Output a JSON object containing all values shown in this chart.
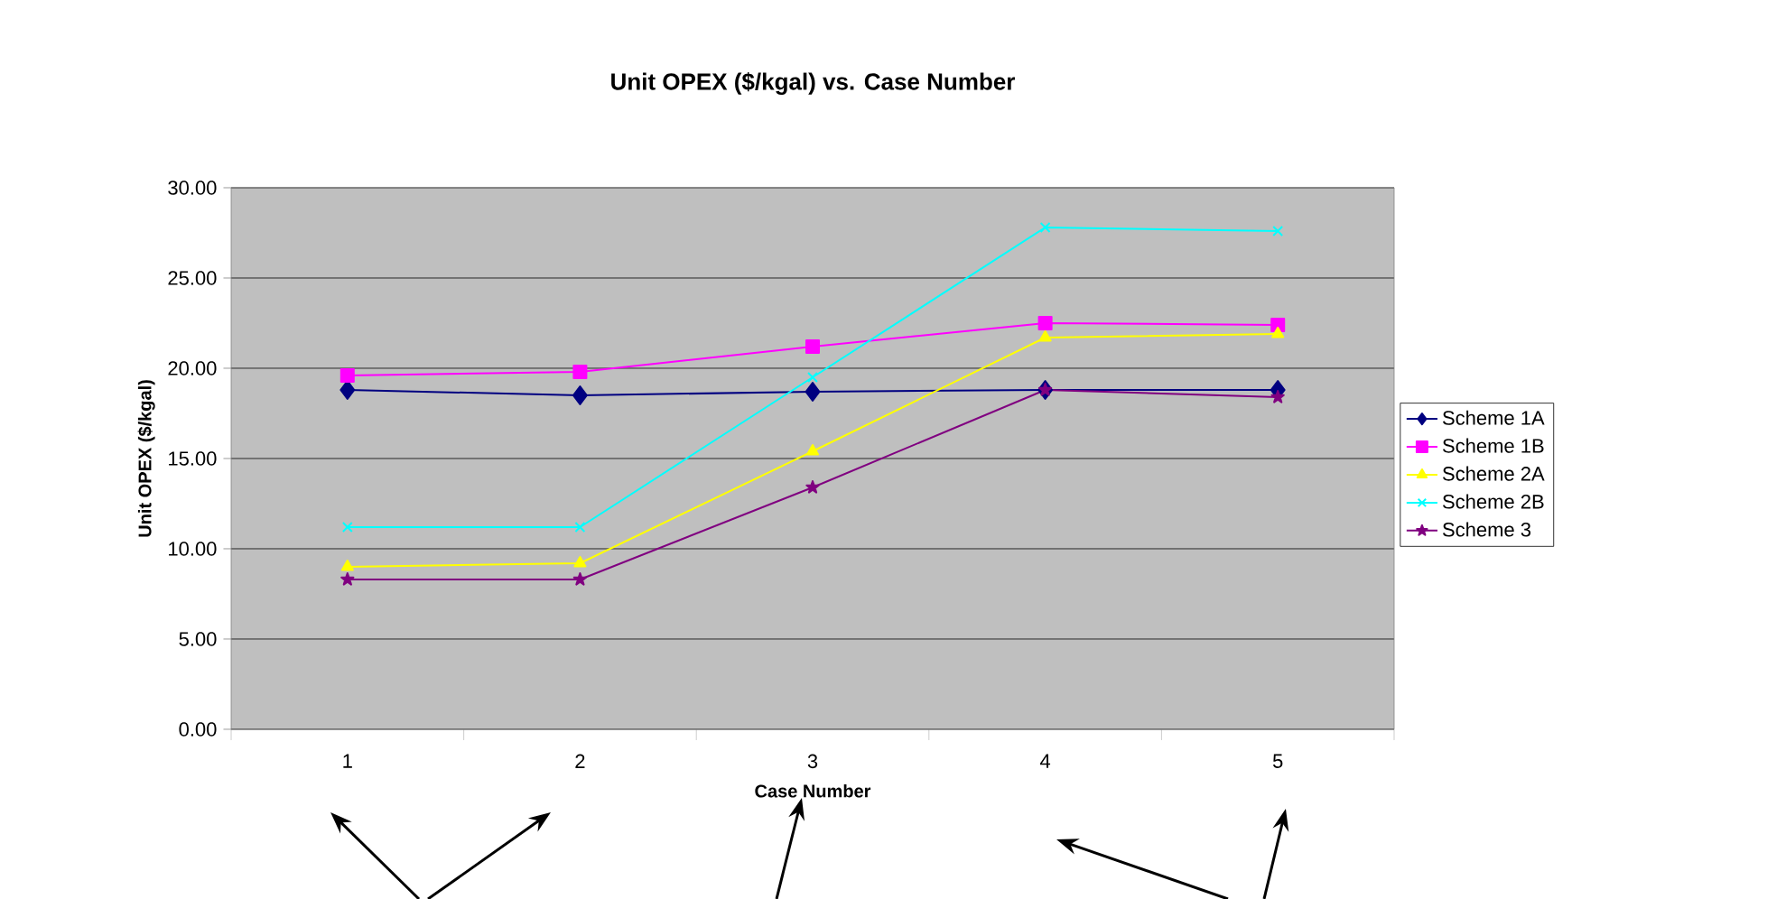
{
  "chart_data": {
    "type": "line",
    "title": "Unit OPEX ($/kgal) vs. Case Number",
    "xlabel": "Case Number",
    "ylabel": "Unit OPEX ($/kgal)",
    "categories": [
      "1",
      "2",
      "3",
      "4",
      "5"
    ],
    "series": [
      {
        "name": "Scheme 1A",
        "color": "#000080",
        "marker": "diamond",
        "values": [
          18.8,
          18.5,
          18.7,
          18.8,
          18.8
        ]
      },
      {
        "name": "Scheme 1B",
        "color": "#ff00ff",
        "marker": "square",
        "values": [
          19.6,
          19.8,
          21.2,
          22.5,
          22.4
        ]
      },
      {
        "name": "Scheme 2A",
        "color": "#ffff00",
        "marker": "triangle",
        "values": [
          9.0,
          9.2,
          15.4,
          21.7,
          21.9
        ]
      },
      {
        "name": "Scheme 2B",
        "color": "#00ffff",
        "marker": "cross",
        "values": [
          11.2,
          11.2,
          19.5,
          27.8,
          27.6
        ]
      },
      {
        "name": "Scheme 3",
        "color": "#800080",
        "marker": "star",
        "values": [
          8.3,
          8.3,
          13.4,
          18.8,
          18.4
        ]
      }
    ],
    "ylim": [
      0,
      30
    ],
    "yticks": [
      {
        "value": 0,
        "label": "0.00"
      },
      {
        "value": 5,
        "label": "5.00"
      },
      {
        "value": 10,
        "label": "10.00"
      },
      {
        "value": 15,
        "label": "15.00"
      },
      {
        "value": 20,
        "label": "20.00"
      },
      {
        "value": 25,
        "label": "25.00"
      },
      {
        "value": 30,
        "label": "30.00"
      }
    ],
    "grid": "y",
    "legend": "right",
    "line_style": "solid"
  }
}
